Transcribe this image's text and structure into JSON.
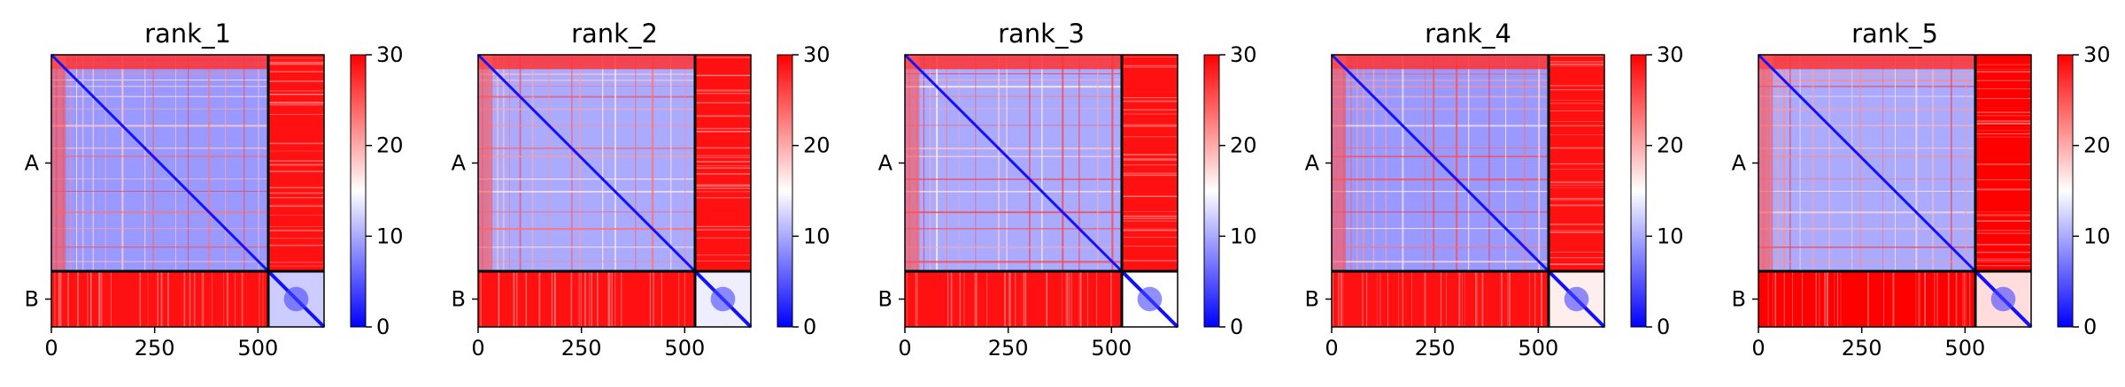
{
  "chart_data": [
    {
      "type": "heatmap",
      "title": "rank_1",
      "x_ticks": [
        0,
        250,
        500
      ],
      "xlim": [
        0,
        660
      ],
      "chain_boundary": 525,
      "y_tick_labels": [
        "A",
        "B"
      ],
      "chains": [
        {
          "name": "A",
          "start": 0,
          "end": 525
        },
        {
          "name": "B",
          "start": 525,
          "end": 660
        }
      ],
      "colorbar": {
        "min": 0,
        "max": 30,
        "ticks": [
          0,
          10,
          20,
          30
        ],
        "colors": [
          "#0000ff",
          "#ffffff",
          "#ff0000"
        ]
      },
      "intra_A_level": 9,
      "intra_B_level": 12,
      "inter_level": 29
    },
    {
      "type": "heatmap",
      "title": "rank_2",
      "x_ticks": [
        0,
        250,
        500
      ],
      "xlim": [
        0,
        660
      ],
      "chain_boundary": 525,
      "y_tick_labels": [
        "A",
        "B"
      ],
      "chains": [
        {
          "name": "A",
          "start": 0,
          "end": 525
        },
        {
          "name": "B",
          "start": 525,
          "end": 660
        }
      ],
      "colorbar": {
        "min": 0,
        "max": 30,
        "ticks": [
          0,
          10,
          20,
          30
        ],
        "colors": [
          "#0000ff",
          "#ffffff",
          "#ff0000"
        ]
      },
      "intra_A_level": 10,
      "intra_B_level": 14,
      "inter_level": 29
    },
    {
      "type": "heatmap",
      "title": "rank_3",
      "x_ticks": [
        0,
        250,
        500
      ],
      "xlim": [
        0,
        660
      ],
      "chain_boundary": 525,
      "y_tick_labels": [
        "A",
        "B"
      ],
      "chains": [
        {
          "name": "A",
          "start": 0,
          "end": 525
        },
        {
          "name": "B",
          "start": 525,
          "end": 660
        }
      ],
      "colorbar": {
        "min": 0,
        "max": 30,
        "ticks": [
          0,
          10,
          20,
          30
        ],
        "colors": [
          "#0000ff",
          "#ffffff",
          "#ff0000"
        ]
      },
      "intra_A_level": 10,
      "intra_B_level": 15,
      "inter_level": 29
    },
    {
      "type": "heatmap",
      "title": "rank_4",
      "x_ticks": [
        0,
        250,
        500
      ],
      "xlim": [
        0,
        660
      ],
      "chain_boundary": 525,
      "y_tick_labels": [
        "A",
        "B"
      ],
      "chains": [
        {
          "name": "A",
          "start": 0,
          "end": 525
        },
        {
          "name": "B",
          "start": 525,
          "end": 660
        }
      ],
      "colorbar": {
        "min": 0,
        "max": 30,
        "ticks": [
          0,
          10,
          20,
          30
        ],
        "colors": [
          "#0000ff",
          "#ffffff",
          "#ff0000"
        ]
      },
      "intra_A_level": 9,
      "intra_B_level": 16,
      "inter_level": 29
    },
    {
      "type": "heatmap",
      "title": "rank_5",
      "x_ticks": [
        0,
        250,
        500
      ],
      "xlim": [
        0,
        660
      ],
      "chain_boundary": 525,
      "y_tick_labels": [
        "A",
        "B"
      ],
      "chains": [
        {
          "name": "A",
          "start": 0,
          "end": 525
        },
        {
          "name": "B",
          "start": 525,
          "end": 660
        }
      ],
      "colorbar": {
        "min": 0,
        "max": 30,
        "ticks": [
          0,
          10,
          20,
          30
        ],
        "colors": [
          "#0000ff",
          "#ffffff",
          "#ff0000"
        ]
      },
      "intra_A_level": 10,
      "intra_B_level": 17,
      "inter_level": 30
    }
  ]
}
